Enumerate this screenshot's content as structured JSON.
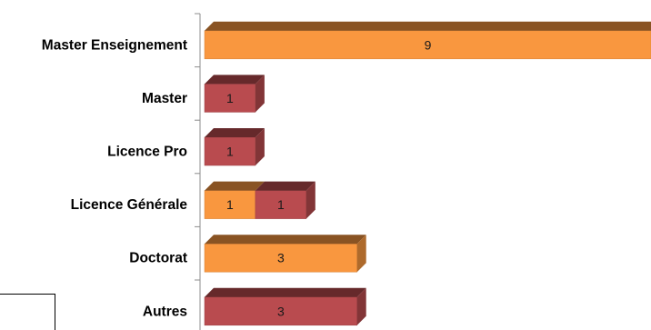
{
  "chart_data": {
    "type": "bar",
    "orientation": "horizontal",
    "stacked": true,
    "style": "3d",
    "categories": [
      "Master Enseignement",
      "Master",
      "Licence Pro",
      "Licence Générale",
      "Doctorat",
      "Autres"
    ],
    "series": [
      {
        "color": "#f9973f",
        "values": [
          9,
          0,
          0,
          1,
          3,
          0
        ]
      },
      {
        "color": "#b94b4f",
        "values": [
          0,
          1,
          1,
          1,
          0,
          3
        ]
      }
    ],
    "xlim": [
      0,
      9
    ],
    "grid": false,
    "title": "",
    "xlabel": "",
    "ylabel": ""
  }
}
